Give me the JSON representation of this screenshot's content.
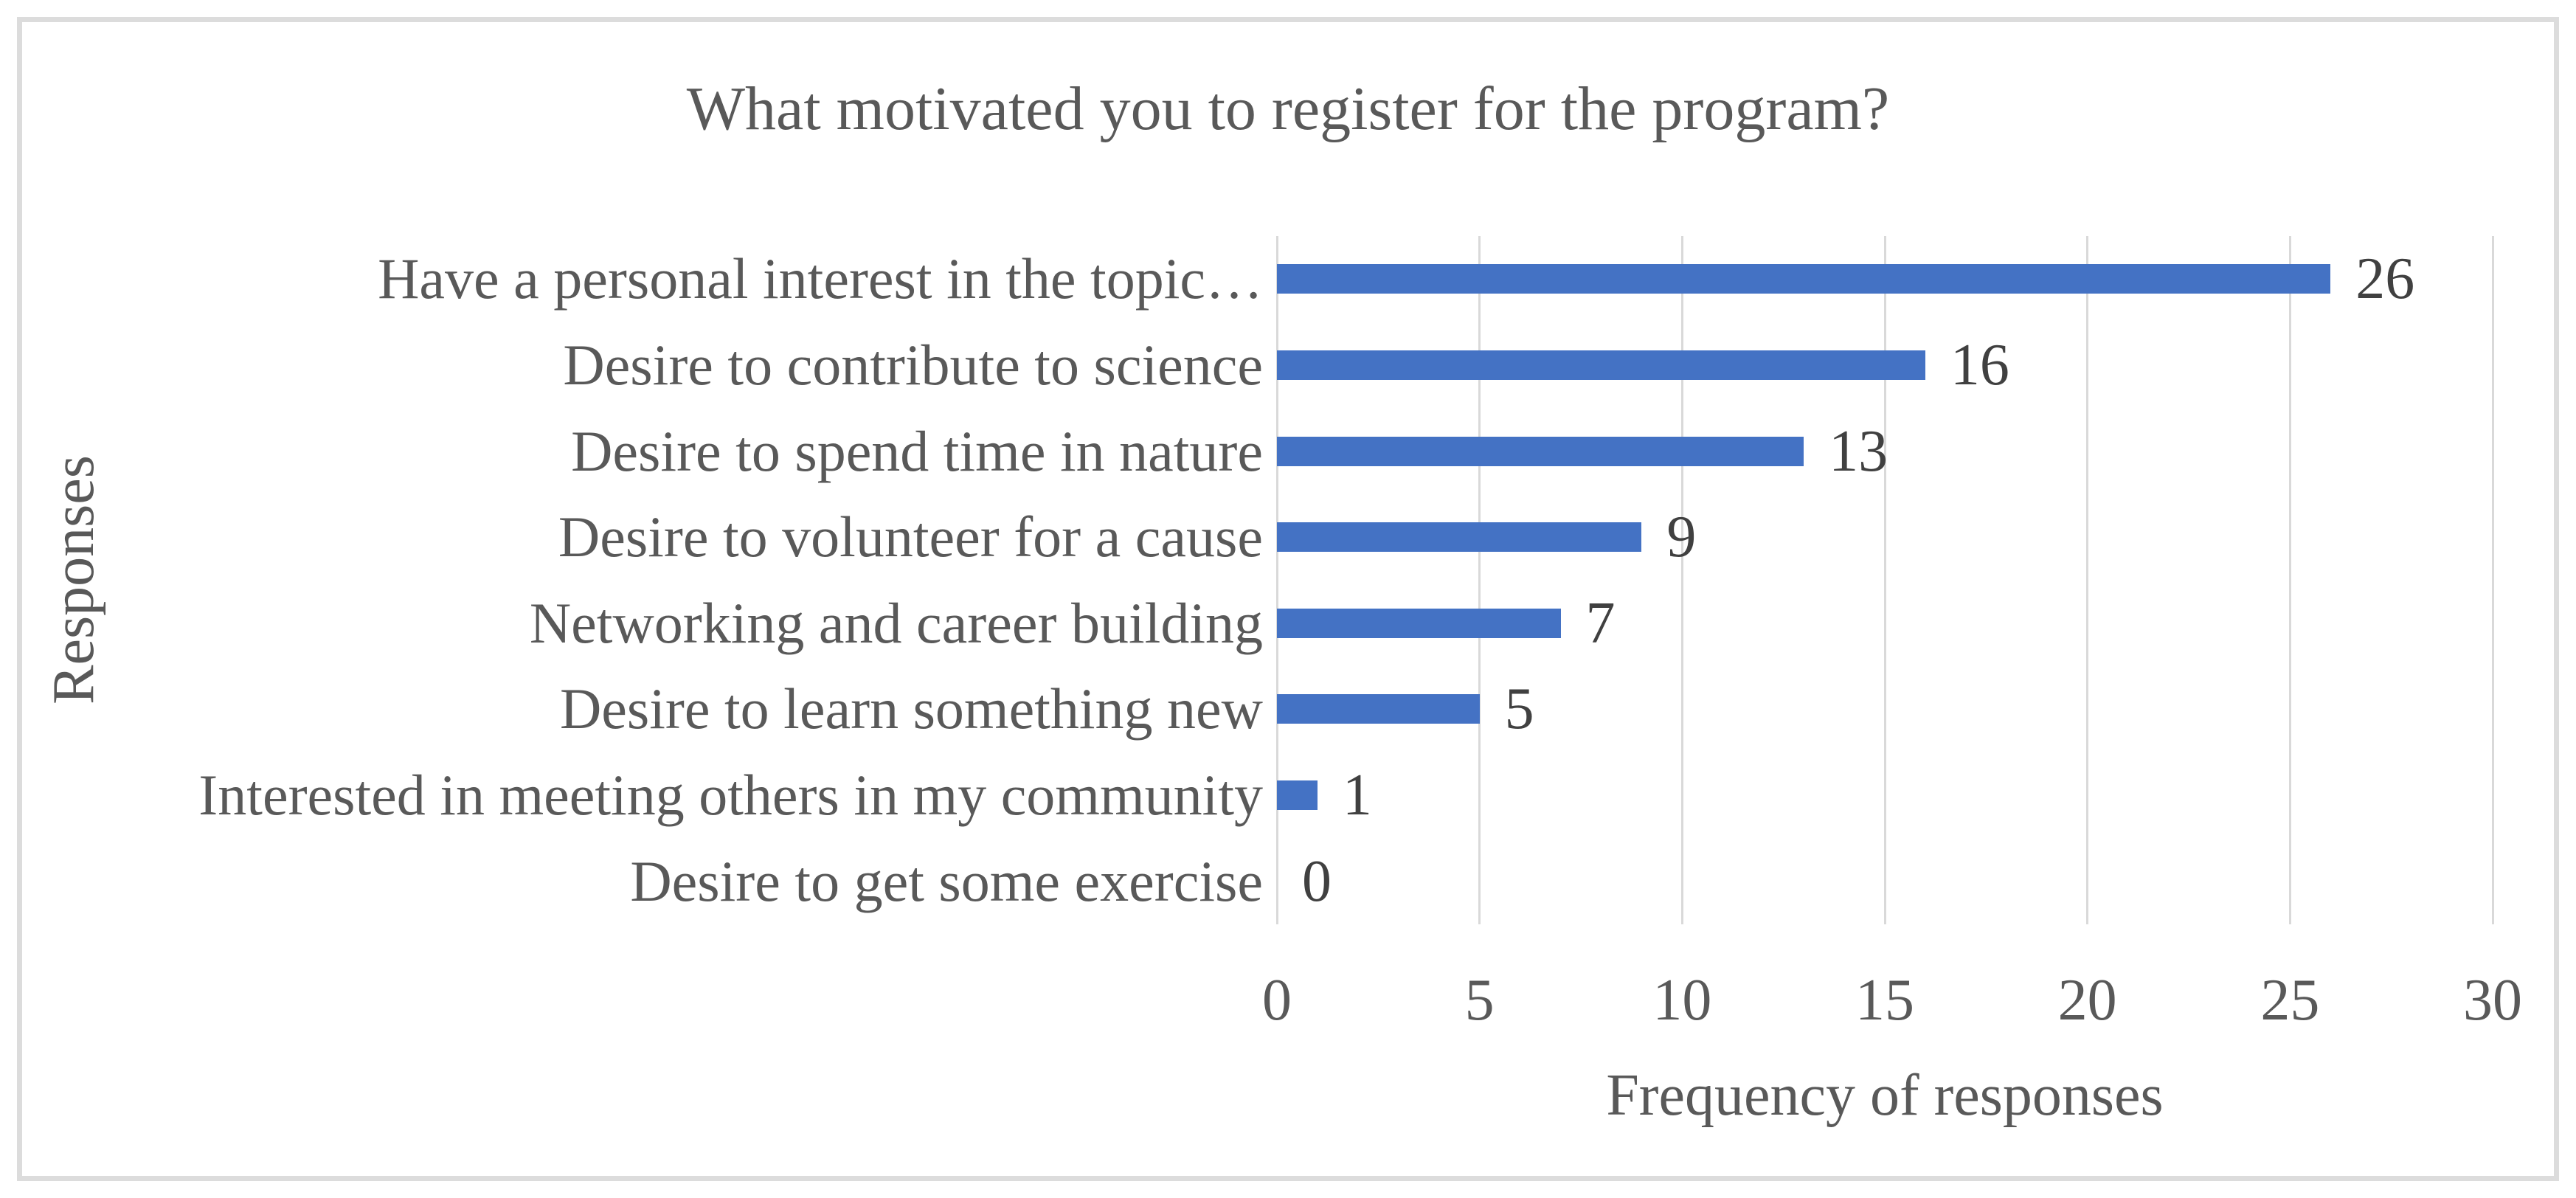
{
  "chart_data": {
    "type": "bar",
    "orientation": "horizontal",
    "title": "What motivated you to register for the program?",
    "xlabel": "Frequency of responses",
    "ylabel": "Responses",
    "categories": [
      "Have a personal interest in the topic…",
      "Desire to contribute to science",
      "Desire to spend time in nature",
      "Desire to volunteer for a cause",
      "Networking and career building",
      "Desire to learn something new",
      "Interested in meeting others in my community",
      "Desire to get some exercise"
    ],
    "values": [
      26,
      16,
      13,
      9,
      7,
      5,
      1,
      0
    ],
    "data_labels": [
      "26",
      "16",
      "13",
      "9",
      "7",
      "5",
      "1",
      "0"
    ],
    "xlim": [
      0,
      30
    ],
    "x_ticks": [
      0,
      5,
      10,
      15,
      20,
      25,
      30
    ],
    "grid": "vertical-gridlines-only",
    "legend_position": "none",
    "colors": {
      "bar": "#4472C4",
      "gridline": "#D9D9D9",
      "frame_border": "#DCDCDC",
      "title_text": "#595959",
      "axis_text": "#595959",
      "data_label_text": "#404040",
      "background": "#FFFFFF"
    }
  }
}
